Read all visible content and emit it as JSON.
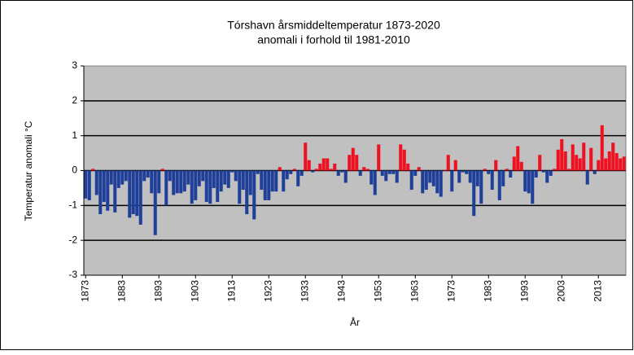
{
  "chart_data": {
    "type": "bar",
    "title": [
      "Tórshavn årsmiddeltemperatur 1873-2020",
      "anomali i forhold til 1981-2010"
    ],
    "xlabel": "År",
    "ylabel": "Temperatur anomali °C",
    "x": [
      1873,
      1874,
      1875,
      1876,
      1877,
      1878,
      1879,
      1880,
      1881,
      1882,
      1883,
      1884,
      1885,
      1886,
      1887,
      1888,
      1889,
      1890,
      1891,
      1892,
      1893,
      1894,
      1895,
      1896,
      1897,
      1898,
      1899,
      1900,
      1901,
      1902,
      1903,
      1904,
      1905,
      1906,
      1907,
      1908,
      1909,
      1910,
      1911,
      1912,
      1913,
      1914,
      1915,
      1916,
      1917,
      1918,
      1919,
      1920,
      1921,
      1922,
      1923,
      1924,
      1925,
      1926,
      1927,
      1928,
      1929,
      1930,
      1931,
      1932,
      1933,
      1934,
      1935,
      1936,
      1937,
      1938,
      1939,
      1940,
      1941,
      1942,
      1943,
      1944,
      1945,
      1946,
      1947,
      1948,
      1949,
      1950,
      1951,
      1952,
      1953,
      1954,
      1955,
      1956,
      1957,
      1958,
      1959,
      1960,
      1961,
      1962,
      1963,
      1964,
      1965,
      1966,
      1967,
      1968,
      1969,
      1970,
      1971,
      1972,
      1973,
      1974,
      1975,
      1976,
      1977,
      1978,
      1979,
      1980,
      1981,
      1982,
      1983,
      1984,
      1985,
      1986,
      1987,
      1988,
      1989,
      1990,
      1991,
      1992,
      1993,
      1994,
      1995,
      1996,
      1997,
      1998,
      1999,
      2000,
      2001,
      2002,
      2003,
      2004,
      2005,
      2006,
      2007,
      2008,
      2009,
      2010,
      2011,
      2012,
      2013,
      2014,
      2015,
      2016,
      2017,
      2018,
      2019,
      2020
    ],
    "values": [
      -0.8,
      -0.85,
      0.05,
      -0.7,
      -1.25,
      -0.9,
      -1.15,
      -0.4,
      -1.2,
      -0.5,
      -0.4,
      -0.3,
      -1.35,
      -1.25,
      -1.3,
      -1.55,
      -0.3,
      -0.2,
      -0.65,
      -1.85,
      -0.65,
      0.05,
      -1.0,
      -0.3,
      -0.7,
      -0.65,
      -0.65,
      -0.6,
      -0.4,
      -0.95,
      -0.85,
      -0.45,
      -0.3,
      -0.9,
      -0.95,
      -0.5,
      -0.9,
      -0.6,
      -0.4,
      -0.5,
      -0.05,
      -0.3,
      -0.95,
      -0.55,
      -1.25,
      -0.7,
      -1.4,
      -0.1,
      -0.55,
      -0.85,
      -0.85,
      -0.6,
      -0.6,
      0.1,
      -0.6,
      -0.25,
      -0.1,
      0.05,
      -0.45,
      -0.15,
      0.8,
      0.3,
      -0.05,
      0.05,
      0.2,
      0.35,
      0.35,
      0.05,
      0.2,
      -0.15,
      -0.05,
      -0.35,
      0.45,
      0.65,
      0.45,
      -0.15,
      0.1,
      0.05,
      -0.4,
      -0.7,
      0.75,
      -0.15,
      -0.3,
      -0.1,
      -0.1,
      -0.35,
      0.75,
      0.6,
      0.2,
      -0.55,
      -0.15,
      0.1,
      -0.65,
      -0.55,
      -0.35,
      -0.45,
      -0.65,
      -0.75,
      0.02,
      0.45,
      -0.6,
      0.3,
      -0.35,
      -0.05,
      -0.1,
      -0.35,
      -1.3,
      -0.45,
      -0.95,
      0.05,
      -0.1,
      -0.55,
      0.3,
      -0.85,
      -0.45,
      0.05,
      -0.2,
      0.4,
      0.7,
      0.25,
      -0.6,
      -0.65,
      -0.95,
      -0.2,
      0.45,
      -0.05,
      -0.35,
      -0.15,
      0.05,
      0.6,
      0.9,
      0.55,
      0.05,
      0.75,
      0.45,
      0.35,
      0.8,
      -0.4,
      0.65,
      -0.1,
      0.3,
      1.3,
      0.35,
      0.55,
      0.8,
      0.5,
      0.35,
      0.4
    ],
    "colors": {
      "positive": "#ee1122",
      "negative": "#1f3f99"
    },
    "xlim": [
      1872.5,
      2020.5
    ],
    "xticks": [
      1873,
      1883,
      1893,
      1903,
      1913,
      1923,
      1933,
      1943,
      1953,
      1963,
      1973,
      1983,
      1993,
      2003,
      2013
    ],
    "ylim": [
      -3,
      3
    ],
    "yticks": [
      -3,
      -2,
      -1,
      0,
      1,
      2,
      3
    ],
    "grid": true,
    "plot_background": "#c0c0c0"
  }
}
